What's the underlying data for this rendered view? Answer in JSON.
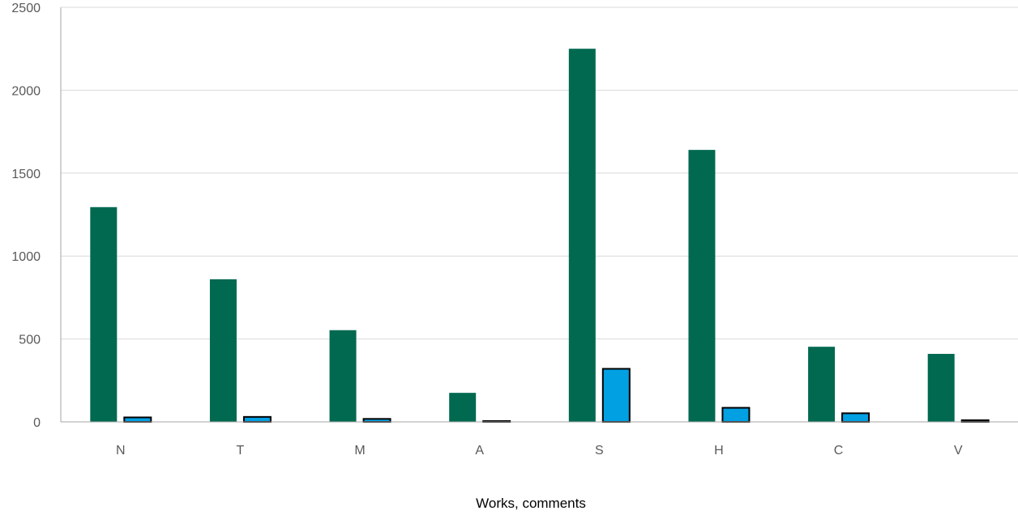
{
  "chart_data": {
    "type": "bar",
    "xlabel": "Works, comments",
    "ylabel": "",
    "ylim": [
      0,
      2500
    ],
    "yticks": [
      0,
      500,
      1000,
      1500,
      2000,
      2500
    ],
    "grid": true,
    "legend": "none",
    "categories": [
      "N",
      "T",
      "M",
      "A",
      "S",
      "H",
      "C",
      "V"
    ],
    "series": [
      {
        "color": "#006950",
        "values": [
          1295,
          860,
          553,
          175,
          2250,
          1640,
          453,
          410
        ]
      },
      {
        "color": "#00A0E2",
        "values": [
          27,
          30,
          18,
          5,
          320,
          85,
          52,
          10
        ]
      }
    ]
  }
}
